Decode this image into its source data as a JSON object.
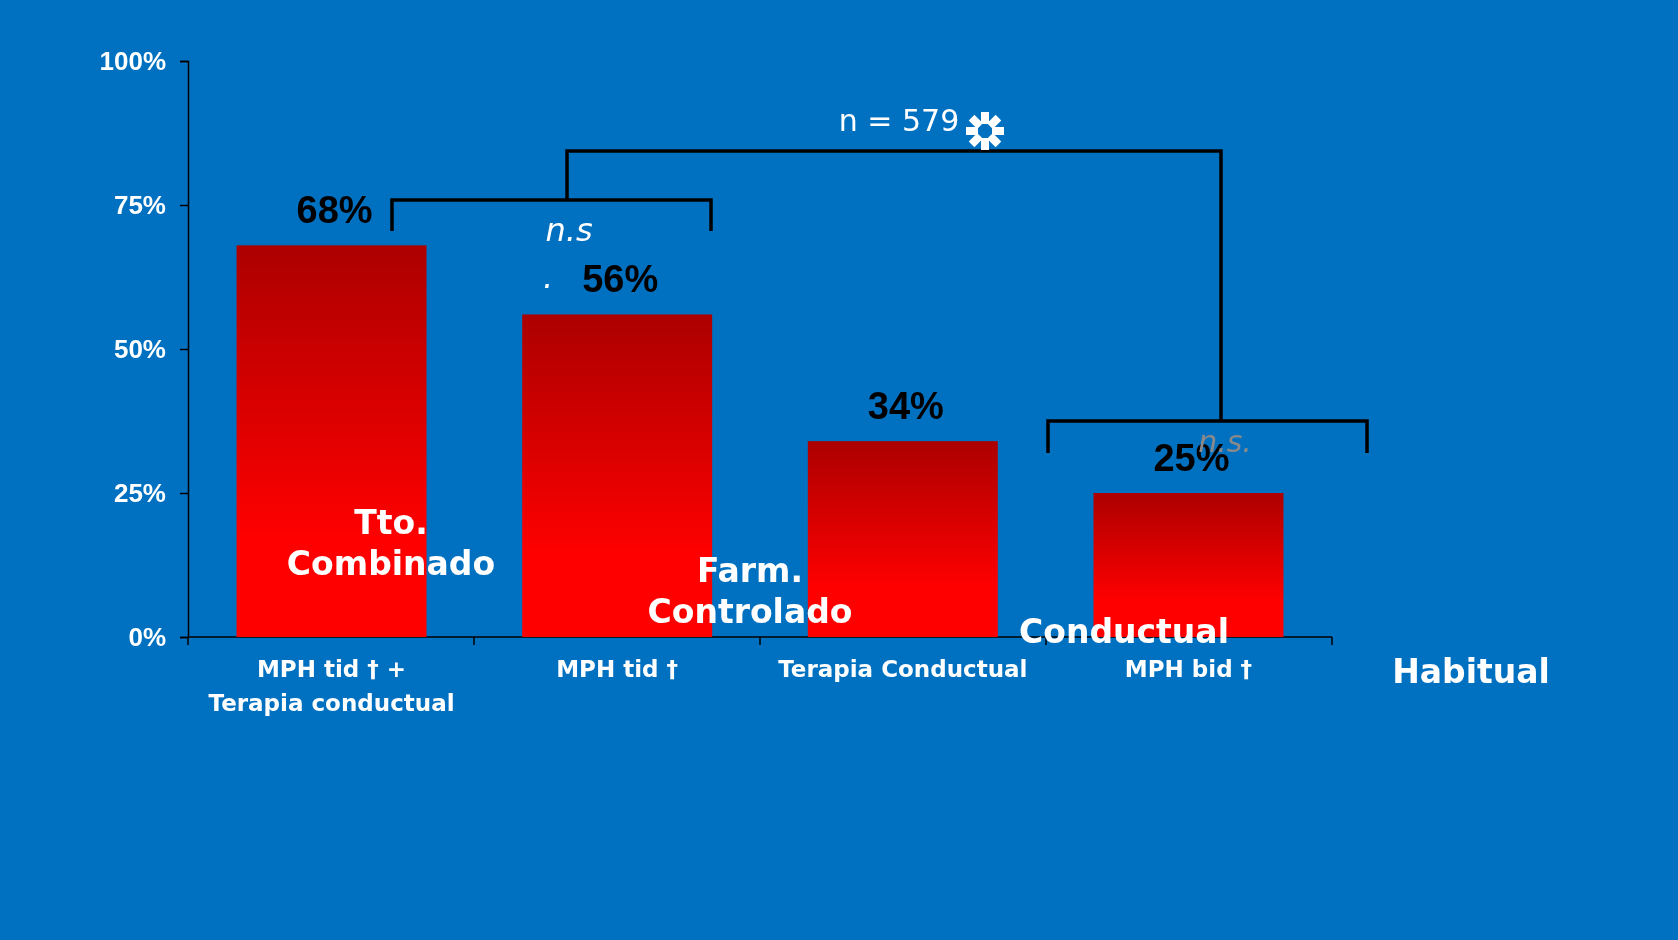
{
  "chart_data": {
    "type": "bar",
    "categories": [
      "MPH tid † + Terapia conductual",
      "MPH tid †",
      "Terapia Conductual",
      "MPH bid †"
    ],
    "values": [
      68,
      56,
      34,
      25
    ],
    "color": "#ff0000",
    "value_labels": [
      "68%",
      "56%",
      "34%",
      "25%"
    ],
    "ylim": [
      0,
      100
    ],
    "yticks": [
      {
        "value": 0,
        "label": "0%"
      },
      {
        "value": 25,
        "label": "25%"
      },
      {
        "value": 50,
        "label": "50%"
      },
      {
        "value": 75,
        "label": "75%"
      },
      {
        "value": 100,
        "label": "100%"
      }
    ],
    "grid": false,
    "annotations": [
      "n = 579",
      "n.s",
      ".",
      "n.s.",
      "Tto. Combinado",
      "Farm. Controlado",
      "Conductual",
      "Habitual"
    ]
  }
}
